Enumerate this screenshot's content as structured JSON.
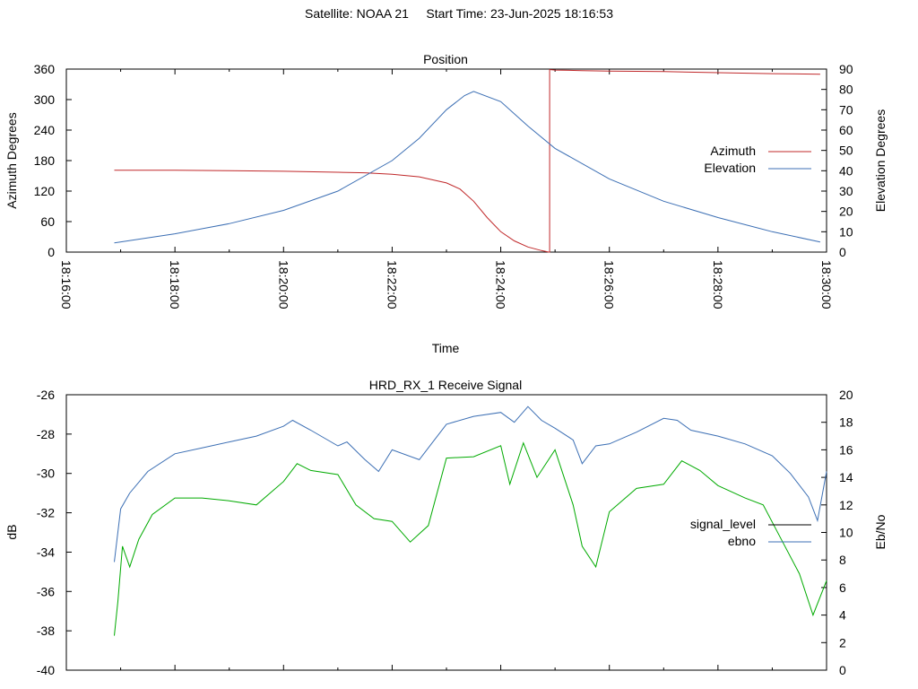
{
  "header": {
    "satellite_label": "Satellite: NOAA 21",
    "start_label": "Start Time: 23-Jun-2025 18:16:53"
  },
  "chart_data": [
    {
      "id": "position",
      "type": "line",
      "title": "Position",
      "xlabel": "Time",
      "ylabel": "Azimuth Degrees",
      "y2label": "Elevation Degrees",
      "xlim": [
        "18:16:00",
        "18:30:00"
      ],
      "xticks": [
        "18:16:00",
        "18:18:00",
        "18:20:00",
        "18:22:00",
        "18:24:00",
        "18:26:00",
        "18:28:00",
        "18:30:00"
      ],
      "ylim": [
        0,
        360
      ],
      "yticks": [
        0,
        60,
        120,
        180,
        240,
        300,
        360
      ],
      "y2lim": [
        0,
        90
      ],
      "y2ticks": [
        0,
        10,
        20,
        30,
        40,
        50,
        60,
        70,
        80,
        90
      ],
      "legend_position": "right",
      "grid": false,
      "series": [
        {
          "name": "Azimuth",
          "axis": "left",
          "color": "#c0282a",
          "x": [
            "18:16:53",
            "18:18:00",
            "18:19:00",
            "18:20:00",
            "18:21:00",
            "18:21:30",
            "18:22:00",
            "18:22:30",
            "18:23:00",
            "18:23:15",
            "18:23:30",
            "18:23:45",
            "18:24:00",
            "18:24:15",
            "18:24:30",
            "18:24:45",
            "18:24:53",
            "18:24:54",
            "18:25:00",
            "18:25:30",
            "18:26:00",
            "18:27:00",
            "18:28:00",
            "18:29:00",
            "18:29:53"
          ],
          "values": [
            161,
            161,
            160,
            159,
            157,
            156,
            153,
            148,
            136,
            124,
            100,
            68,
            40,
            22,
            10,
            3,
            0,
            359,
            358,
            357,
            356,
            355,
            353,
            351,
            350
          ]
        },
        {
          "name": "Elevation",
          "axis": "right",
          "color": "#3c6fb4",
          "x": [
            "18:16:53",
            "18:17:30",
            "18:18:00",
            "18:19:00",
            "18:20:00",
            "18:21:00",
            "18:22:00",
            "18:22:30",
            "18:23:00",
            "18:23:20",
            "18:23:30",
            "18:24:00",
            "18:24:30",
            "18:25:00",
            "18:26:00",
            "18:27:00",
            "18:28:00",
            "18:29:00",
            "18:29:53"
          ],
          "values": [
            4.5,
            7,
            9,
            14,
            20.5,
            30,
            45,
            56,
            70,
            77,
            79,
            74,
            62,
            51,
            36,
            25,
            17,
            10,
            5
          ]
        }
      ]
    },
    {
      "id": "signal",
      "type": "line",
      "title": "HRD_RX_1 Receive Signal",
      "ylabel": "dB",
      "y2label": "Eb/No",
      "xlim": [
        "18:16:00",
        "18:30:00"
      ],
      "ylim": [
        -40,
        -26
      ],
      "yticks": [
        -40,
        -38,
        -36,
        -34,
        -32,
        -30,
        -28,
        -26
      ],
      "y2lim": [
        0,
        20
      ],
      "y2ticks": [
        0,
        2,
        4,
        6,
        8,
        10,
        12,
        14,
        16,
        18,
        20
      ],
      "legend_position": "right",
      "grid": false,
      "series": [
        {
          "name": "signal_level",
          "axis": "left",
          "legend_color": "#000000",
          "color": "#3c6fb4",
          "x": [
            "18:16:53",
            "18:17:00",
            "18:17:10",
            "18:17:30",
            "18:18:00",
            "18:18:30",
            "18:19:00",
            "18:19:30",
            "18:20:00",
            "18:20:10",
            "18:20:30",
            "18:21:00",
            "18:21:10",
            "18:21:30",
            "18:21:45",
            "18:22:00",
            "18:22:30",
            "18:22:45",
            "18:23:00",
            "18:23:30",
            "18:24:00",
            "18:24:15",
            "18:24:30",
            "18:24:45",
            "18:25:00",
            "18:25:20",
            "18:25:30",
            "18:25:45",
            "18:26:00",
            "18:26:30",
            "18:27:00",
            "18:27:15",
            "18:27:30",
            "18:28:00",
            "18:28:30",
            "18:29:00",
            "18:29:20",
            "18:29:40",
            "18:29:50",
            "18:30:00"
          ],
          "values": [
            -34.5,
            -31.8,
            -31,
            -29.9,
            -29,
            -28.7,
            -28.4,
            -28.1,
            -27.6,
            -27.3,
            -27.8,
            -28.6,
            -28.4,
            -29.3,
            -29.9,
            -28.8,
            -29.3,
            -28.4,
            -27.5,
            -27.1,
            -26.9,
            -27.4,
            -26.6,
            -27.3,
            -27.7,
            -28.3,
            -29.5,
            -28.6,
            -28.5,
            -27.9,
            -27.2,
            -27.3,
            -27.8,
            -28.1,
            -28.5,
            -29.1,
            -30,
            -31.2,
            -32.4,
            -29.9
          ]
        },
        {
          "name": "ebno",
          "axis": "right",
          "legend_color": "#3c6fb4",
          "color": "#00aa00",
          "x": [
            "18:16:53",
            "18:16:57",
            "18:17:02",
            "18:17:10",
            "18:17:20",
            "18:17:35",
            "18:18:00",
            "18:18:30",
            "18:19:00",
            "18:19:30",
            "18:20:00",
            "18:20:15",
            "18:20:30",
            "18:21:00",
            "18:21:20",
            "18:21:40",
            "18:22:00",
            "18:22:20",
            "18:22:40",
            "18:23:00",
            "18:23:30",
            "18:24:00",
            "18:24:10",
            "18:24:25",
            "18:24:40",
            "18:25:00",
            "18:25:20",
            "18:25:30",
            "18:25:45",
            "18:26:00",
            "18:26:30",
            "18:27:00",
            "18:27:20",
            "18:27:40",
            "18:28:00",
            "18:28:30",
            "18:28:50",
            "18:29:10",
            "18:29:30",
            "18:29:45",
            "18:30:00"
          ],
          "values": [
            2.5,
            5,
            9,
            7.5,
            9.5,
            11.3,
            12.5,
            12.5,
            12.3,
            12,
            13.7,
            15,
            14.5,
            14.2,
            12,
            11,
            10.8,
            9.3,
            10.5,
            15.4,
            15.5,
            16.3,
            13.5,
            16.5,
            14,
            16,
            12,
            9,
            7.5,
            11.5,
            13.2,
            13.5,
            15.2,
            14.5,
            13.4,
            12.5,
            12,
            9.5,
            7,
            4,
            6.5
          ]
        }
      ]
    }
  ]
}
